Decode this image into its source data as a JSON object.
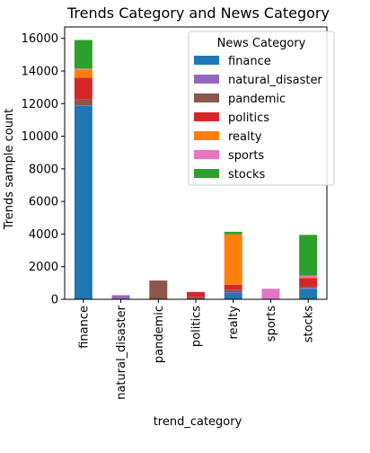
{
  "chart_data": {
    "type": "bar",
    "stacked": true,
    "title": "Trends Category and News Category",
    "xlabel": "trend_category",
    "ylabel": "Trends sample count",
    "ylim": [
      0,
      16700
    ],
    "yticks": [
      0,
      2000,
      4000,
      6000,
      8000,
      10000,
      12000,
      14000,
      16000
    ],
    "ytick_labels": [
      "0",
      "2000",
      "4000",
      "6000",
      "8000",
      "10000",
      "12000",
      "14000",
      "16000"
    ],
    "grid": false,
    "legend": {
      "title": "News Category",
      "placement": "top-right"
    },
    "categories": [
      "finance",
      "natural_disaster",
      "pandemic",
      "politics",
      "realty",
      "sports",
      "stocks"
    ],
    "series": [
      {
        "name": "finance",
        "color": "#1f77b4",
        "values": [
          11850,
          0,
          0,
          0,
          420,
          0,
          650
        ]
      },
      {
        "name": "natural_disaster",
        "color": "#9467bd",
        "values": [
          50,
          250,
          0,
          0,
          20,
          0,
          50
        ]
      },
      {
        "name": "pandemic",
        "color": "#8c564b",
        "values": [
          350,
          0,
          1150,
          150,
          150,
          0,
          100
        ]
      },
      {
        "name": "politics",
        "color": "#d62728",
        "values": [
          1350,
          0,
          0,
          300,
          300,
          0,
          500
        ]
      },
      {
        "name": "realty",
        "color": "#ff7f0e",
        "values": [
          500,
          0,
          0,
          0,
          3100,
          0,
          50
        ]
      },
      {
        "name": "sports",
        "color": "#e377c2",
        "values": [
          50,
          0,
          0,
          0,
          0,
          650,
          100
        ]
      },
      {
        "name": "stocks",
        "color": "#2ca02c",
        "values": [
          1750,
          0,
          0,
          0,
          150,
          0,
          2500
        ]
      }
    ]
  }
}
